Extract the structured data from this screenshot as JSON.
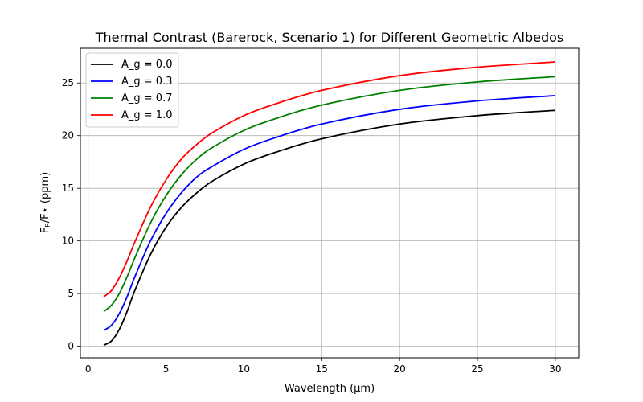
{
  "chart_data": {
    "type": "line",
    "title": "Thermal Contrast (Barerock, Scenario 1) for Different Geometric Albedos",
    "xlabel": "Wavelength (μm)",
    "ylabel": "Fₚ/F⋆ (ppm)",
    "xlim": [
      -0.5,
      31.5
    ],
    "ylim": [
      -1.1,
      28.3
    ],
    "xticks": [
      0,
      5,
      10,
      15,
      20,
      25,
      30
    ],
    "yticks": [
      0,
      5,
      10,
      15,
      20,
      25
    ],
    "grid": true,
    "legend_position": "top-left",
    "x": [
      1,
      1.5,
      2,
      2.5,
      3,
      4,
      5,
      6,
      7,
      8,
      10,
      12,
      15,
      20,
      25,
      30
    ],
    "series": [
      {
        "name": "A_g = 0.0",
        "color": "#000000",
        "values": [
          0.1,
          0.5,
          1.6,
          3.3,
          5.3,
          8.7,
          11.3,
          13.2,
          14.6,
          15.7,
          17.3,
          18.4,
          19.7,
          21.1,
          21.9,
          22.4
        ]
      },
      {
        "name": "A_g = 0.3",
        "color": "#0000ff",
        "values": [
          1.5,
          2.0,
          3.1,
          4.7,
          6.6,
          10.0,
          12.6,
          14.6,
          16.1,
          17.1,
          18.7,
          19.8,
          21.1,
          22.5,
          23.3,
          23.8
        ]
      },
      {
        "name": "A_g = 0.7",
        "color": "#008000",
        "values": [
          3.3,
          3.9,
          5.0,
          6.6,
          8.4,
          11.7,
          14.3,
          16.3,
          17.8,
          18.9,
          20.5,
          21.6,
          22.9,
          24.3,
          25.1,
          25.6
        ]
      },
      {
        "name": "A_g = 1.0",
        "color": "#ff0000",
        "values": [
          4.7,
          5.3,
          6.5,
          8.1,
          9.9,
          13.2,
          15.8,
          17.8,
          19.2,
          20.3,
          21.9,
          23.0,
          24.3,
          25.7,
          26.5,
          27.0
        ]
      }
    ]
  }
}
